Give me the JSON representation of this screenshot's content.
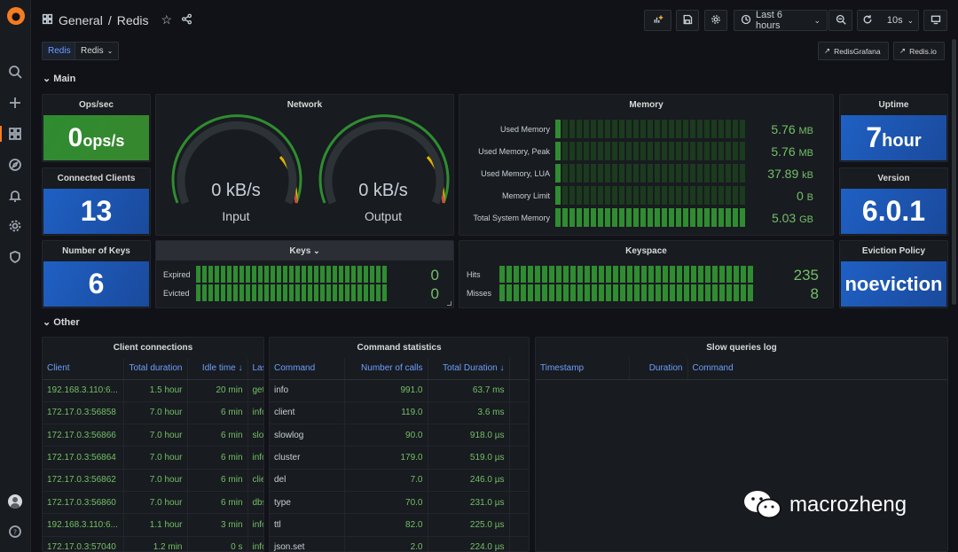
{
  "breadcrumb": {
    "folder": "General",
    "separator": "/",
    "dashboard": "Redis"
  },
  "toolbar": {
    "time_range": "Last 6 hours",
    "refresh": "10s"
  },
  "tags": {
    "tag": "Redis",
    "variable": "Redis"
  },
  "links": {
    "link1": "RedisGrafana",
    "link2": "Redis.io"
  },
  "rows": {
    "main": "Main",
    "other": "Other"
  },
  "panels": {
    "ops": {
      "title": "Ops/sec",
      "value": "0",
      "unit": " ops/s"
    },
    "clients": {
      "title": "Connected Clients",
      "value": "13"
    },
    "keys_count": {
      "title": "Number of Keys",
      "value": "6"
    },
    "network": {
      "title": "Network",
      "input_value": "0 kB/s",
      "input_label": "Input",
      "output_value": "0 kB/s",
      "output_label": "Output"
    },
    "memory": {
      "title": "Memory",
      "items": [
        {
          "label": "Used Memory",
          "value": "5.76",
          "unit": "MB",
          "fill": 0.0
        },
        {
          "label": "Used Memory, Peak",
          "value": "5.76",
          "unit": "MB",
          "fill": 0.0
        },
        {
          "label": "Used Memory, LUA",
          "value": "37.89",
          "unit": "kB",
          "fill": 0.0
        },
        {
          "label": "Memory Limit",
          "value": "0",
          "unit": "B",
          "fill": 0.0
        },
        {
          "label": "Total System Memory",
          "value": "5.03",
          "unit": "GB",
          "fill": 1.0
        }
      ]
    },
    "uptime": {
      "title": "Uptime",
      "value": "7",
      "unit": " hour"
    },
    "version": {
      "title": "Version",
      "value": "6.0.1"
    },
    "keys": {
      "title": "Keys",
      "items": [
        {
          "label": "Expired",
          "value": "0"
        },
        {
          "label": "Evicted",
          "value": "0"
        }
      ]
    },
    "keyspace": {
      "title": "Keyspace",
      "items": [
        {
          "label": "Hits",
          "value": "235"
        },
        {
          "label": "Misses",
          "value": "8"
        }
      ]
    },
    "eviction": {
      "title": "Eviction Policy",
      "value": "noeviction"
    }
  },
  "client_connections": {
    "title": "Client connections",
    "columns": [
      "Client",
      "Total duration",
      "Idle time",
      "Last"
    ],
    "rows": [
      [
        "192.168.3.110:6...",
        "1.5 hour",
        "20 min",
        "get"
      ],
      [
        "172.17.0.3:56858",
        "7.0 hour",
        "6 min",
        "info"
      ],
      [
        "172.17.0.3:56866",
        "7.0 hour",
        "6 min",
        "slo"
      ],
      [
        "172.17.0.3:56864",
        "7.0 hour",
        "6 min",
        "info"
      ],
      [
        "172.17.0.3:56862",
        "7.0 hour",
        "6 min",
        "clie"
      ],
      [
        "172.17.0.3:56860",
        "7.0 hour",
        "6 min",
        "dbs"
      ],
      [
        "192.168.3.110:6...",
        "1.1 hour",
        "3 min",
        "info"
      ],
      [
        "172.17.0.3:57040",
        "1.2 min",
        "0 s",
        "info"
      ]
    ]
  },
  "command_stats": {
    "title": "Command statistics",
    "columns": [
      "Command",
      "Number of calls",
      "Total Duration"
    ],
    "rows": [
      [
        "info",
        "991.0",
        "63.7 ms"
      ],
      [
        "client",
        "119.0",
        "3.6 ms"
      ],
      [
        "slowlog",
        "90.0",
        "918.0 µs"
      ],
      [
        "cluster",
        "179.0",
        "519.0 µs"
      ],
      [
        "del",
        "7.0",
        "246.0 µs"
      ],
      [
        "type",
        "70.0",
        "231.0 µs"
      ],
      [
        "ttl",
        "82.0",
        "225.0 µs"
      ],
      [
        "json.set",
        "2.0",
        "224.0 µs"
      ]
    ]
  },
  "slow_queries": {
    "title": "Slow queries log",
    "columns": [
      "Timestamp",
      "Duration",
      "Command"
    ]
  },
  "watermark": "macrozheng",
  "colors": {
    "accent": "#f57c22",
    "green": "#73bf69",
    "blue_header": "#6e9fff"
  }
}
